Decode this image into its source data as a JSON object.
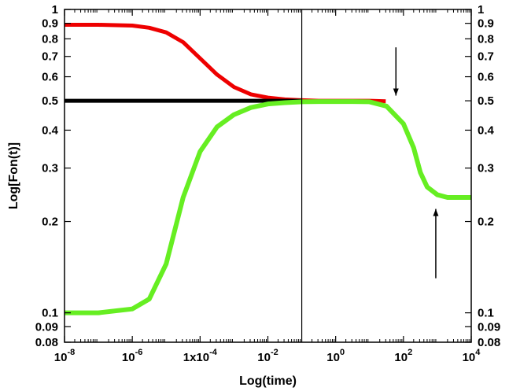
{
  "chart_data": {
    "type": "line",
    "xlabel": "Log(time)",
    "ylabel": "Log[Fon(t)]",
    "x_scale": "log",
    "y_scale": "log",
    "xlim": [
      1e-08,
      10000
    ],
    "ylim": [
      0.08,
      1
    ],
    "x_ticks": [
      {
        "value": 1e-08,
        "base": "10",
        "exp": "-8"
      },
      {
        "value": 1e-06,
        "base": "10",
        "exp": "-6"
      },
      {
        "value": 0.0001,
        "base": "1x10",
        "exp": "-4"
      },
      {
        "value": 0.01,
        "base": "10",
        "exp": "-2"
      },
      {
        "value": 1,
        "base": "10",
        "exp": "0"
      },
      {
        "value": 100,
        "base": "10",
        "exp": "2"
      },
      {
        "value": 10000,
        "base": "10",
        "exp": "4"
      }
    ],
    "y_ticks": [
      {
        "value": 0.08,
        "label": "0.08"
      },
      {
        "value": 0.09,
        "label": "0.09"
      },
      {
        "value": 0.1,
        "label": "0.1"
      },
      {
        "value": 0.2,
        "label": "0.2"
      },
      {
        "value": 0.3,
        "label": "0.3"
      },
      {
        "value": 0.4,
        "label": "0.4"
      },
      {
        "value": 0.5,
        "label": "0.5"
      },
      {
        "value": 0.6,
        "label": "0.6"
      },
      {
        "value": 0.7,
        "label": "0.7"
      },
      {
        "value": 0.8,
        "label": "0.8"
      },
      {
        "value": 0.9,
        "label": "0.9"
      },
      {
        "value": 1,
        "label": "1"
      }
    ],
    "series": [
      {
        "color": "#ee0000",
        "x": [
          1e-08,
          1e-07,
          1e-06,
          3.16e-06,
          1e-05,
          3.16e-05,
          0.0001,
          0.000316,
          0.001,
          0.00316,
          0.01,
          0.0316,
          0.1,
          0.316,
          1,
          10,
          30
        ],
        "y": [
          0.89,
          0.89,
          0.885,
          0.87,
          0.84,
          0.78,
          0.69,
          0.61,
          0.555,
          0.525,
          0.512,
          0.505,
          0.502,
          0.5,
          0.5,
          0.5,
          0.498
        ]
      },
      {
        "color": "#000000",
        "x": [
          1e-08,
          0.1
        ],
        "y": [
          0.5,
          0.5
        ]
      },
      {
        "color": "#66ee22",
        "x": [
          1e-08,
          1e-07,
          1e-06,
          3.16e-06,
          1e-05,
          3.16e-05,
          0.0001,
          0.000316,
          0.001,
          0.00316,
          0.01,
          0.0316,
          0.1,
          0.316,
          1,
          3.16,
          10,
          31.6,
          100,
          200,
          316,
          500,
          1000,
          2000,
          10000
        ],
        "y": [
          0.1,
          0.1,
          0.103,
          0.111,
          0.145,
          0.24,
          0.34,
          0.41,
          0.45,
          0.475,
          0.488,
          0.493,
          0.496,
          0.497,
          0.497,
          0.497,
          0.496,
          0.48,
          0.42,
          0.35,
          0.29,
          0.26,
          0.245,
          0.24,
          0.24
        ]
      }
    ],
    "vertical_line": {
      "x": 0.1,
      "color": "#000000"
    },
    "annotations": [
      {
        "type": "arrow",
        "direction": "down",
        "x": 60,
        "y_from": 0.75,
        "y_to": 0.52
      },
      {
        "type": "arrow",
        "direction": "up",
        "x": 900,
        "y_from": 0.13,
        "y_to": 0.22
      }
    ]
  }
}
